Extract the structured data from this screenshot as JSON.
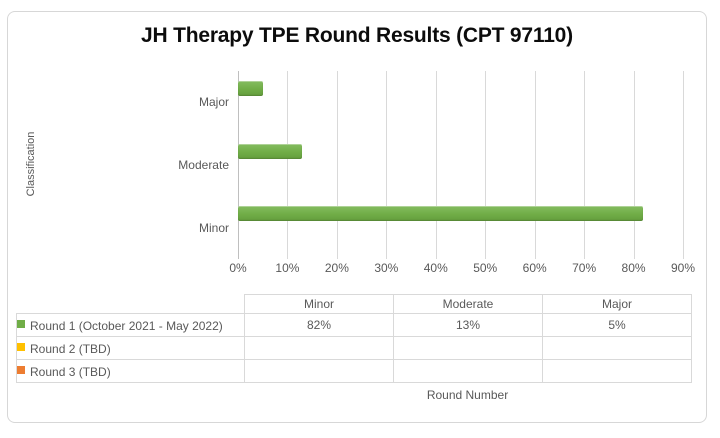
{
  "chart": {
    "title": "JH Therapy TPE Round Results (CPT 97110)",
    "x_axis_title": "Round Number",
    "y_axis_title": "Classification"
  },
  "colors": {
    "round1_green": "#70AD47",
    "round2_gold": "#FFC000",
    "round3_orange": "#ED7D31",
    "gridline": "#D9D9D9",
    "axis_line": "#BFBFBF",
    "axis_text": "#595959"
  },
  "chart_data": {
    "type": "bar",
    "orientation": "horizontal",
    "title": "JH Therapy TPE Round Results (CPT 97110)",
    "categories": [
      "Major",
      "Moderate",
      "Minor"
    ],
    "series": [
      {
        "name": "Round 1 (October 2021 - May 2022)",
        "color": "#70AD47",
        "values": [
          5,
          13,
          82
        ]
      },
      {
        "name": "Round 2 (TBD)",
        "color": "#FFC000",
        "values": [
          null,
          null,
          null
        ]
      },
      {
        "name": "Round 3 (TBD)",
        "color": "#ED7D31",
        "values": [
          null,
          null,
          null
        ]
      }
    ],
    "xlabel": "Round Number",
    "ylabel": "Classification",
    "xlim": [
      0,
      90
    ],
    "x_ticks": [
      "0%",
      "10%",
      "20%",
      "30%",
      "40%",
      "50%",
      "60%",
      "70%",
      "80%",
      "90%"
    ],
    "grid": true,
    "legend_position": "bottom-data-table"
  },
  "data_table": {
    "columns": [
      "Minor",
      "Moderate",
      "Major"
    ],
    "rows": [
      {
        "label": "Round 1 (October 2021 - May 2022)",
        "marker_color": "#70AD47",
        "values": [
          "82%",
          "13%",
          "5%"
        ]
      },
      {
        "label": "Round 2 (TBD)",
        "marker_color": "#FFC000",
        "values": [
          "",
          "",
          ""
        ]
      },
      {
        "label": "Round 3 (TBD)",
        "marker_color": "#ED7D31",
        "values": [
          "",
          "",
          ""
        ]
      }
    ]
  }
}
